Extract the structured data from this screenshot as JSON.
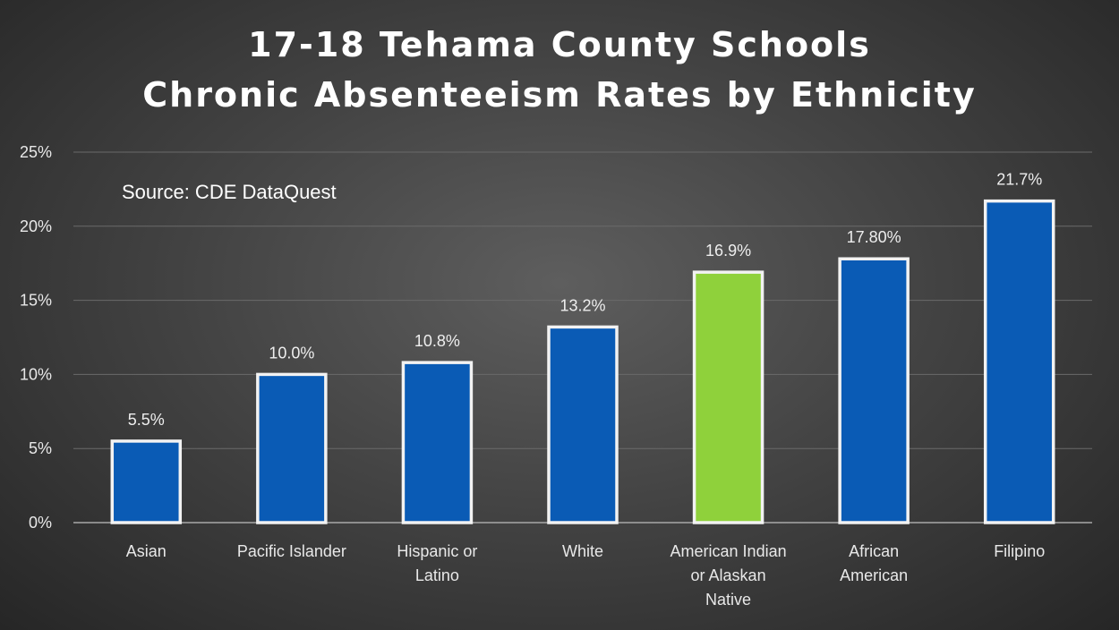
{
  "chart_data": {
    "type": "bar",
    "title": [
      "17-18 Tehama County Schools",
      "Chronic Absenteeism Rates by Ethnicity"
    ],
    "annotation": "Source:  CDE DataQuest",
    "categories": [
      [
        "Asian"
      ],
      [
        "Pacific Islander"
      ],
      [
        "Hispanic or",
        "Latino"
      ],
      [
        "White"
      ],
      [
        "American Indian",
        "or Alaskan",
        "Native"
      ],
      [
        "African",
        "American"
      ],
      [
        "Filipino"
      ]
    ],
    "values": [
      5.5,
      10.0,
      10.8,
      13.2,
      16.9,
      17.8,
      21.7
    ],
    "data_labels": [
      "5.5%",
      "10.0%",
      "10.8%",
      "13.2%",
      "16.9%",
      "17.80%",
      "21.7%"
    ],
    "y_ticks": [
      "0%",
      "5%",
      "10%",
      "15%",
      "20%",
      "25%"
    ],
    "ylim": [
      0,
      25
    ],
    "grid": true,
    "colors": {
      "bar": "#0a5bb5",
      "highlight_bar": "#8fd13b",
      "bar_border": "#f2f2f2",
      "grid": "#6a6a6a"
    },
    "highlight_index": 4
  }
}
